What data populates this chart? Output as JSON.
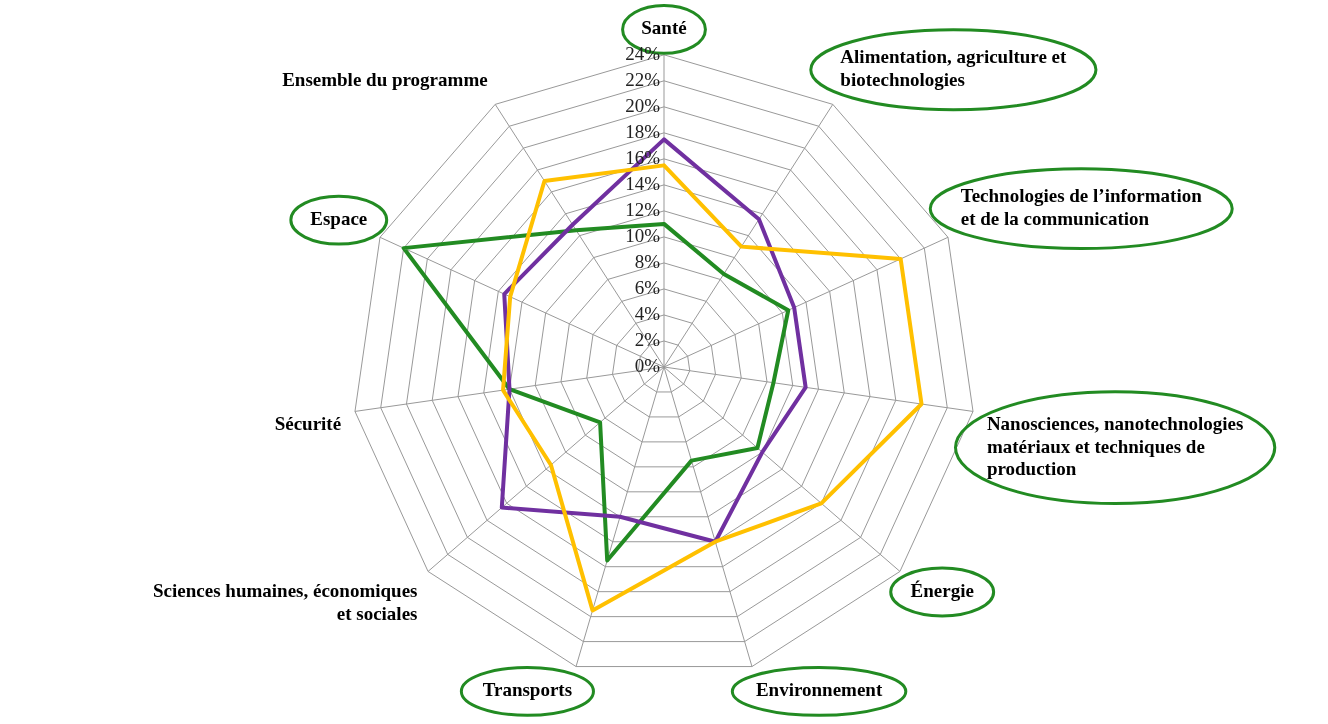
{
  "chart_data": {
    "type": "radar",
    "categories": [
      "Santé",
      "Alimentation, agriculture et biotechnologies",
      "Technologies de l’information et de la communication",
      "Nanosciences, nanotechnologies matériaux et techniques de production",
      "Énergie",
      "Environnement",
      "Transports",
      "Sciences humaines, économiques et sociales",
      "Sécurité",
      "Espace",
      "Ensemble du programme"
    ],
    "series": [
      {
        "color": "#ffc000",
        "values": [
          15.5,
          11,
          20,
          20,
          16,
          14,
          19.5,
          11.5,
          12.5,
          13,
          17
        ]
      },
      {
        "color": "#7030a0",
        "values": [
          17.5,
          13.5,
          11,
          11,
          10,
          14,
          12,
          16.5,
          12,
          13.5,
          13
        ]
      },
      {
        "color": "#228b22",
        "values": [
          11,
          8.5,
          10.5,
          8.5,
          9.5,
          7.5,
          15.5,
          6.5,
          12,
          22,
          12.5
        ]
      }
    ],
    "ylim": [
      0,
      24
    ],
    "yticks": [
      {
        "value": 0,
        "label": "0%"
      },
      {
        "value": 2,
        "label": "2%"
      },
      {
        "value": 4,
        "label": "4%"
      },
      {
        "value": 6,
        "label": "6%"
      },
      {
        "value": 8,
        "label": "8%"
      },
      {
        "value": 10,
        "label": "10%"
      },
      {
        "value": 12,
        "label": "12%"
      },
      {
        "value": 14,
        "label": "14%"
      },
      {
        "value": 16,
        "label": "16%"
      },
      {
        "value": 18,
        "label": "18%"
      },
      {
        "value": 20,
        "label": "20%"
      },
      {
        "value": 22,
        "label": "22%"
      },
      {
        "value": 24,
        "label": "24%"
      }
    ],
    "grid": true,
    "legend": false,
    "marker": "none",
    "line_style": "solid"
  }
}
